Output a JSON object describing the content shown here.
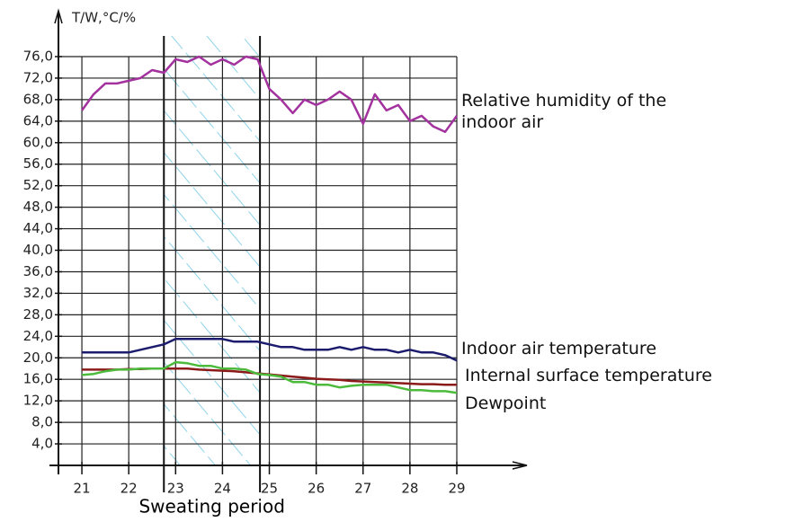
{
  "chart_data": {
    "type": "line",
    "y_label": "T/W,°C/%",
    "x": [
      21,
      21.25,
      21.5,
      21.75,
      22,
      22.25,
      22.5,
      22.75,
      23,
      23.25,
      23.5,
      23.75,
      24,
      24.25,
      24.5,
      24.75,
      25,
      25.25,
      25.5,
      25.75,
      26,
      26.25,
      26.5,
      26.75,
      27,
      27.25,
      27.5,
      27.75,
      28,
      28.25,
      28.5,
      28.75,
      29
    ],
    "series": [
      {
        "name": "Relative humidity of the indoor air",
        "color": "#a3329f",
        "values": [
          66,
          69,
          71,
          71,
          71.5,
          72,
          73.5,
          73,
          75.5,
          75,
          76,
          74.5,
          75.5,
          74.5,
          76,
          75.5,
          70,
          68,
          65.5,
          68,
          67,
          68,
          69.5,
          68,
          63.5,
          69,
          66,
          67,
          64,
          65,
          63,
          62,
          65
        ]
      },
      {
        "name": "Indoor air temperature",
        "color": "#1c1c6e",
        "values": [
          21,
          21,
          21,
          21,
          21,
          21.5,
          22,
          22.5,
          23.5,
          23.5,
          23.5,
          23.5,
          23.5,
          23,
          23,
          23,
          22.5,
          22,
          22,
          21.5,
          21.5,
          21.5,
          22,
          21.5,
          22,
          21.5,
          21.5,
          21,
          21.5,
          21,
          21,
          20.5,
          19.5
        ]
      },
      {
        "name": "Internal surface temperature",
        "color": "#8b1a1a",
        "values": [
          17.8,
          17.8,
          17.8,
          17.8,
          17.9,
          17.9,
          18,
          18,
          18,
          18,
          17.8,
          17.7,
          17.6,
          17.5,
          17.3,
          17.1,
          16.9,
          16.7,
          16.5,
          16.3,
          16.1,
          16,
          15.9,
          15.7,
          15.6,
          15.5,
          15.4,
          15.3,
          15.2,
          15.1,
          15.1,
          15,
          15
        ]
      },
      {
        "name": "Dewpoint",
        "color": "#4cbb3c",
        "values": [
          16.8,
          17,
          17.5,
          17.8,
          17.8,
          18,
          18,
          18,
          19.2,
          19,
          18.5,
          18.5,
          18,
          18,
          17.8,
          17,
          16.8,
          16.5,
          15.5,
          15.5,
          15,
          15,
          14.5,
          14.8,
          15,
          15,
          15,
          14.5,
          14,
          14,
          13.8,
          13.8,
          13.5
        ]
      }
    ],
    "xlim": [
      20.5,
      29
    ],
    "xticks": [
      21,
      22,
      23,
      24,
      25,
      26,
      27,
      28,
      29
    ],
    "ylim": [
      0,
      76
    ],
    "yticks": [
      {
        "value": 4,
        "label": "4,0"
      },
      {
        "value": 8,
        "label": "8,0"
      },
      {
        "value": 12,
        "label": "12,0"
      },
      {
        "value": 16,
        "label": "16,0"
      },
      {
        "value": 20,
        "label": "20,0"
      },
      {
        "value": 24,
        "label": "24,0"
      },
      {
        "value": 28,
        "label": "28,0"
      },
      {
        "value": 32,
        "label": "32,0"
      },
      {
        "value": 36,
        "label": "36,0"
      },
      {
        "value": 40,
        "label": "40,0"
      },
      {
        "value": 44,
        "label": "44,0"
      },
      {
        "value": 48,
        "label": "48,0"
      },
      {
        "value": 52,
        "label": "52,0"
      },
      {
        "value": 56,
        "label": "56,0"
      },
      {
        "value": 60,
        "label": "60,0"
      },
      {
        "value": 64,
        "label": "64,0"
      },
      {
        "value": 68,
        "label": "68,0"
      },
      {
        "value": 72,
        "label": "72,0"
      },
      {
        "value": 76,
        "label": "76,0"
      }
    ],
    "grid": true,
    "highlight": {
      "label": "Sweating period",
      "xrange": [
        22.75,
        24.8
      ]
    }
  }
}
